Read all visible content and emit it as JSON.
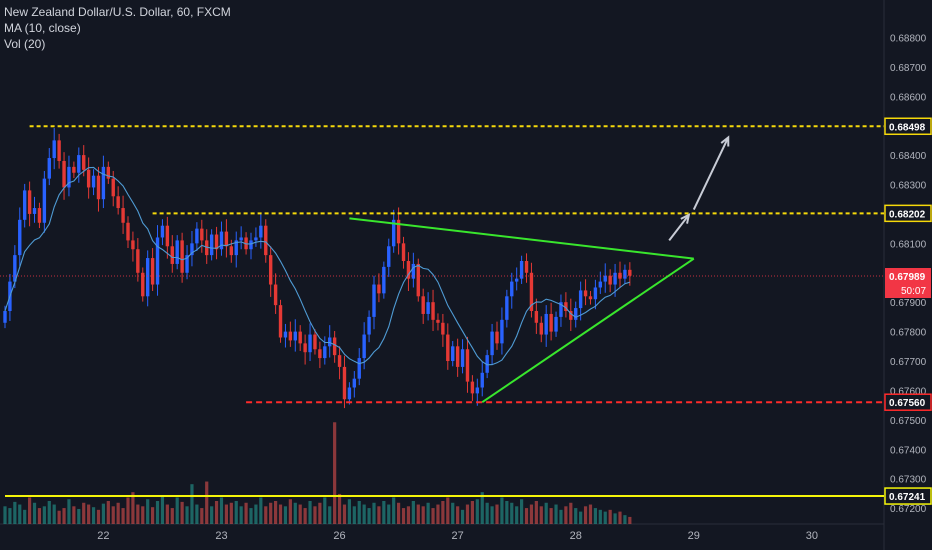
{
  "legend": {
    "symbol": "New Zealand Dollar/U.S. Dollar, 60, FXCM",
    "ma": "MA (10, close)",
    "vol": "Vol (20)"
  },
  "chart_data": {
    "type": "candlestick",
    "ylim": [
      0.6718,
      0.689
    ],
    "y_ticks": [
      "0.68800",
      "0.68700",
      "0.68600",
      "0.68400",
      "0.68300",
      "0.68100",
      "0.67900",
      "0.67800",
      "0.67700",
      "0.67600",
      "0.67500",
      "0.67400",
      "0.67300",
      "0.67200"
    ],
    "x_ticks": [
      {
        "label": "22",
        "bar": 20
      },
      {
        "label": "23",
        "bar": 44
      },
      {
        "label": "26",
        "bar": 68
      },
      {
        "label": "27",
        "bar": 92
      },
      {
        "label": "28",
        "bar": 116
      },
      {
        "label": "29",
        "bar": 140
      },
      {
        "label": "30",
        "bar": 164
      }
    ],
    "levels": [
      {
        "label": "0.68498",
        "value": 0.68498,
        "color": "#f5d90a",
        "style": "dotted",
        "from_bar": 5
      },
      {
        "label": "0.68202",
        "value": 0.68202,
        "color": "#f5d90a",
        "style": "dotted",
        "from_bar": 30
      },
      {
        "label": "0.67560",
        "value": 0.6756,
        "color": "#ff2a2a",
        "style": "dashed",
        "from_bar": 49
      },
      {
        "label": "0.67241",
        "value": 0.67241,
        "color": "#f5f50a",
        "style": "solid",
        "from_bar": 0
      }
    ],
    "current": {
      "price_label": "0.67989",
      "value": 0.67989,
      "countdown": "50:07",
      "color": "#f23645"
    },
    "triangle": {
      "upper": [
        [
          70,
          0.68185
        ],
        [
          140,
          0.68048
        ]
      ],
      "lower": [
        [
          97,
          0.6756
        ],
        [
          140,
          0.68048
        ]
      ],
      "color": "#39e62d"
    },
    "arrows": [
      {
        "from": [
          135,
          0.6811
        ],
        "to": [
          139,
          0.68197
        ]
      },
      {
        "from": [
          140,
          0.68215
        ],
        "to": [
          147,
          0.6846
        ]
      }
    ],
    "closes": [
      0.6787,
      0.6797,
      0.6806,
      0.6818,
      0.6828,
      0.682,
      0.6822,
      0.6817,
      0.6832,
      0.6839,
      0.6845,
      0.6838,
      0.6829,
      0.6836,
      0.6834,
      0.684,
      0.6835,
      0.6829,
      0.6833,
      0.6825,
      0.6836,
      0.6832,
      0.6826,
      0.6822,
      0.6817,
      0.6811,
      0.6808,
      0.68,
      0.6792,
      0.6805,
      0.6796,
      0.6812,
      0.6816,
      0.6809,
      0.6803,
      0.6811,
      0.68,
      0.6806,
      0.681,
      0.6815,
      0.6811,
      0.6806,
      0.6813,
      0.6808,
      0.6814,
      0.6809,
      0.6806,
      0.6811,
      0.6812,
      0.6808,
      0.6811,
      0.6812,
      0.6816,
      0.6806,
      0.6796,
      0.6789,
      0.6778,
      0.678,
      0.6777,
      0.678,
      0.6776,
      0.6773,
      0.6779,
      0.6774,
      0.6771,
      0.6775,
      0.6778,
      0.6772,
      0.6768,
      0.6757,
      0.6761,
      0.6764,
      0.6771,
      0.6779,
      0.6785,
      0.6796,
      0.6793,
      0.6802,
      0.6809,
      0.6818,
      0.681,
      0.6804,
      0.6798,
      0.6803,
      0.6792,
      0.6786,
      0.679,
      0.6784,
      0.6783,
      0.6779,
      0.677,
      0.6775,
      0.6768,
      0.6774,
      0.6763,
      0.6759,
      0.6761,
      0.6766,
      0.6772,
      0.678,
      0.6776,
      0.6784,
      0.6792,
      0.6797,
      0.6798,
      0.6804,
      0.68,
      0.6787,
      0.6783,
      0.6779,
      0.6786,
      0.678,
      0.6785,
      0.679,
      0.6787,
      0.6784,
      0.6788,
      0.6794,
      0.6792,
      0.6791,
      0.6795,
      0.6797,
      0.6799,
      0.6796,
      0.68,
      0.6798,
      0.6801,
      0.6799
    ],
    "volumes": [
      20,
      18,
      25,
      22,
      16,
      30,
      24,
      18,
      20,
      26,
      22,
      15,
      18,
      28,
      20,
      17,
      24,
      22,
      19,
      16,
      23,
      26,
      20,
      24,
      18,
      30,
      36,
      22,
      20,
      28,
      19,
      26,
      32,
      22,
      18,
      30,
      25,
      20,
      45,
      22,
      18,
      48,
      20,
      26,
      30,
      22,
      24,
      26,
      20,
      24,
      18,
      22,
      30,
      20,
      24,
      26,
      22,
      20,
      28,
      24,
      22,
      18,
      26,
      20,
      24,
      30,
      20,
      115,
      34,
      22,
      28,
      20,
      26,
      22,
      18,
      24,
      20,
      26,
      22,
      30,
      24,
      18,
      20,
      26,
      22,
      20,
      24,
      18,
      22,
      26,
      30,
      24,
      20,
      16,
      22,
      26,
      28,
      36,
      24,
      20,
      22,
      30,
      26,
      24,
      20,
      28,
      18,
      22,
      26,
      20,
      24,
      18,
      22,
      16,
      20,
      24,
      18,
      14,
      20,
      22,
      18,
      16,
      14,
      16,
      12,
      14,
      10,
      8
    ],
    "vol_colors_up": "#26a69a",
    "vol_colors_down": "#ef5350",
    "bull_color": "#2962ff",
    "bear_color": "#e53935",
    "ma_color": "#4f9bd4"
  }
}
